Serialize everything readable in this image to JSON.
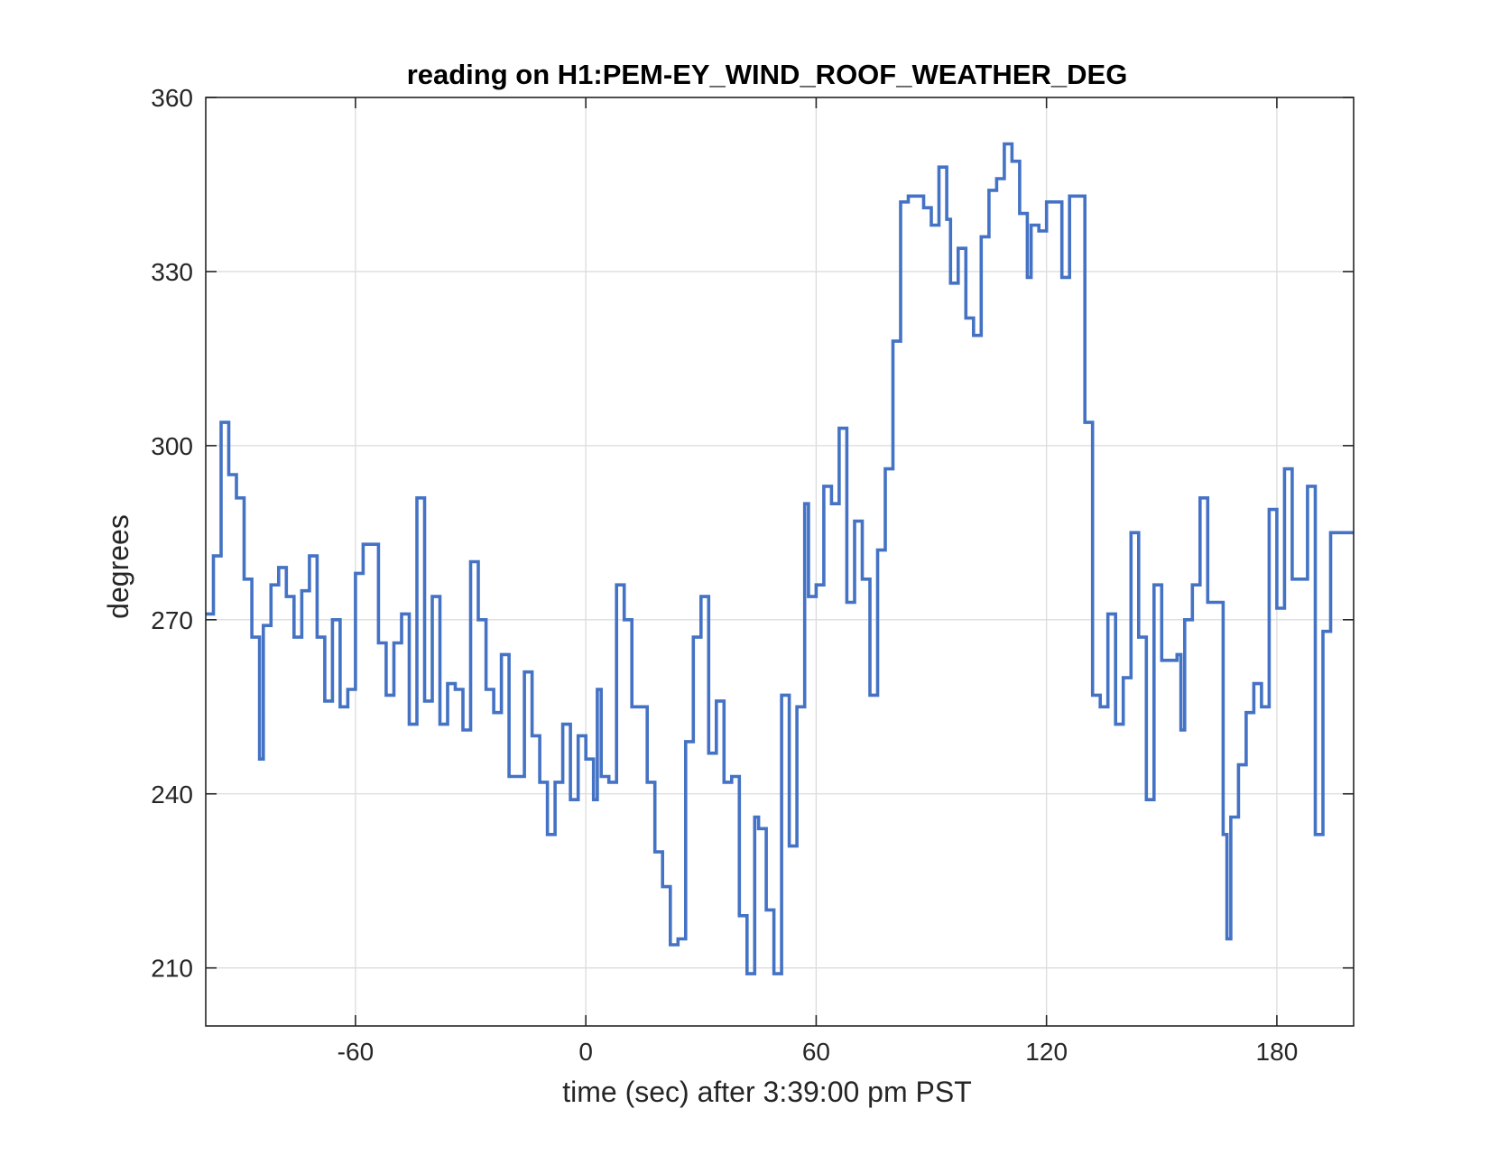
{
  "chart_data": {
    "type": "line",
    "title": "reading on H1:PEM-EY_WIND_ROOF_WEATHER_DEG",
    "xlabel": "time (sec) after 3:39:00 pm PST",
    "ylabel": "degrees",
    "xlim": [
      -99,
      200
    ],
    "ylim": [
      200,
      360
    ],
    "xticks": [
      -60,
      0,
      60,
      120,
      180
    ],
    "yticks": [
      210,
      240,
      270,
      300,
      330,
      360
    ],
    "xtick_labels": [
      "-60",
      "0",
      "60",
      "120",
      "180"
    ],
    "ytick_labels": [
      "210",
      "240",
      "270",
      "300",
      "330",
      "360"
    ],
    "grid": true,
    "step": true,
    "series": [
      {
        "color": "#4472c4",
        "x": [
          -99,
          -97,
          -95,
          -93,
          -91,
          -89,
          -87,
          -85,
          -84,
          -82,
          -80,
          -78,
          -76,
          -74,
          -72,
          -70,
          -68,
          -66,
          -64,
          -62,
          -60,
          -58,
          -56,
          -54,
          -52,
          -50,
          -48,
          -46,
          -44,
          -42,
          -40,
          -38,
          -36,
          -34,
          -32,
          -30,
          -28,
          -26,
          -24,
          -22,
          -20,
          -18,
          -16,
          -14,
          -12,
          -10,
          -8,
          -6,
          -4,
          -2,
          0,
          1,
          2,
          3,
          4,
          5,
          6,
          8,
          10,
          12,
          14,
          16,
          18,
          20,
          22,
          24,
          26,
          28,
          30,
          32,
          34,
          36,
          38,
          40,
          42,
          44,
          45,
          47,
          49,
          51,
          53,
          55,
          57,
          58,
          60,
          62,
          64,
          66,
          68,
          70,
          72,
          74,
          76,
          78,
          80,
          82,
          84,
          86,
          88,
          90,
          92,
          94,
          95,
          97,
          99,
          101,
          103,
          105,
          107,
          109,
          111,
          113,
          115,
          116,
          118,
          120,
          122,
          124,
          126,
          128,
          130,
          132,
          134,
          136,
          138,
          140,
          142,
          144,
          146,
          148,
          150,
          152,
          154,
          155,
          156,
          158,
          160,
          162,
          164,
          166,
          167,
          168,
          170,
          172,
          174,
          176,
          178,
          180,
          182,
          184,
          186,
          188,
          190,
          192,
          194,
          196,
          198
        ],
        "y": [
          271,
          281,
          304,
          295,
          291,
          277,
          267,
          246,
          269,
          276,
          279,
          274,
          267,
          275,
          281,
          267,
          256,
          270,
          255,
          258,
          278,
          283,
          283,
          266,
          257,
          266,
          271,
          252,
          291,
          256,
          274,
          252,
          259,
          258,
          251,
          280,
          270,
          258,
          254,
          264,
          243,
          243,
          261,
          250,
          242,
          233,
          242,
          252,
          239,
          250,
          246,
          246,
          239,
          258,
          243,
          243,
          242,
          276,
          270,
          255,
          255,
          242,
          230,
          224,
          214,
          215,
          249,
          267,
          274,
          247,
          256,
          242,
          243,
          219,
          209,
          236,
          234,
          220,
          209,
          257,
          231,
          255,
          290,
          274,
          276,
          293,
          290,
          303,
          273,
          287,
          277,
          257,
          282,
          296,
          318,
          342,
          343,
          343,
          341,
          338,
          348,
          339,
          328,
          334,
          322,
          319,
          336,
          344,
          346,
          352,
          349,
          340,
          329,
          338,
          337,
          342,
          342,
          329,
          343,
          343,
          304,
          257,
          255,
          271,
          252,
          260,
          285,
          267,
          239,
          276,
          263,
          263,
          264,
          251,
          270,
          276,
          291,
          273,
          273,
          233,
          215,
          236,
          245,
          254,
          259,
          255,
          289,
          272,
          296,
          277,
          277,
          293,
          233,
          268,
          285,
          285,
          285
        ]
      }
    ]
  }
}
